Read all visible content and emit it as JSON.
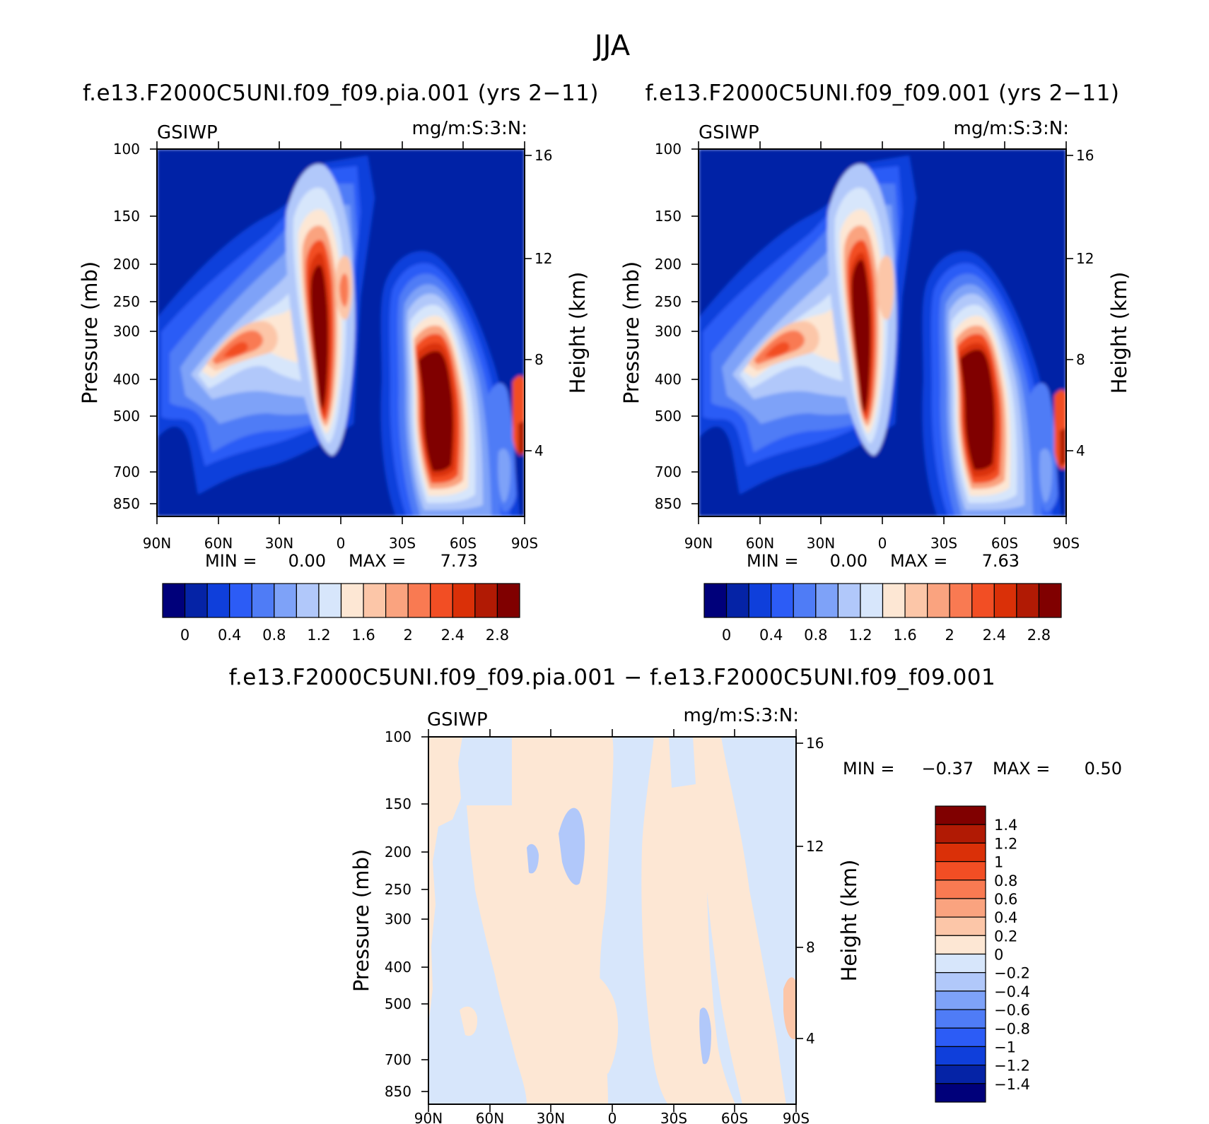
{
  "figure_title": "JJA",
  "chart_data": [
    {
      "type": "heatmap",
      "title": "f.e13.F2000C5UNI.f09_f09.pia.001 (yrs 2−11)",
      "variable": "GSIWP",
      "units": "mg/m:S:3:N:",
      "xlabel": "",
      "ylabel": "Pressure (mb)",
      "ylabel_right": "Height (km)",
      "x_ticks": [
        "90N",
        "60N",
        "30N",
        "0",
        "30S",
        "60S",
        "90S"
      ],
      "y_ticks": [
        "100",
        "150",
        "200",
        "250",
        "300",
        "400",
        "500",
        "700",
        "850"
      ],
      "y2_ticks": [
        "16",
        "12",
        "8",
        "4"
      ],
      "min_label": "MIN =",
      "min_value": "0.00",
      "max_label": "MAX =",
      "max_value": "7.73",
      "colorbar": {
        "orientation": "horizontal",
        "labels": [
          "0",
          "0.4",
          "0.8",
          "1.2",
          "1.6",
          "2",
          "2.4",
          "2.8"
        ],
        "colors": [
          "#00007a",
          "#0523a6",
          "#0f3fdb",
          "#2c5cf6",
          "#4f7cf6",
          "#7ea2f8",
          "#b1c8fa",
          "#d7e6fb",
          "#fde7d4",
          "#fcc6a8",
          "#faa37f",
          "#f97a52",
          "#f24e24",
          "#da3008",
          "#b11a04",
          "#800000"
        ]
      }
    },
    {
      "type": "heatmap",
      "title": "f.e13.F2000C5UNI.f09_f09.001 (yrs 2−11)",
      "variable": "GSIWP",
      "units": "mg/m:S:3:N:",
      "xlabel": "",
      "ylabel": "Pressure (mb)",
      "ylabel_right": "Height (km)",
      "x_ticks": [
        "90N",
        "60N",
        "30N",
        "0",
        "30S",
        "60S",
        "90S"
      ],
      "y_ticks": [
        "100",
        "150",
        "200",
        "250",
        "300",
        "400",
        "500",
        "700",
        "850"
      ],
      "y2_ticks": [
        "16",
        "12",
        "8",
        "4"
      ],
      "min_label": "MIN =",
      "min_value": "0.00",
      "max_label": "MAX =",
      "max_value": "7.63",
      "colorbar": {
        "orientation": "horizontal",
        "labels": [
          "0",
          "0.4",
          "0.8",
          "1.2",
          "1.6",
          "2",
          "2.4",
          "2.8"
        ],
        "colors": [
          "#00007a",
          "#0523a6",
          "#0f3fdb",
          "#2c5cf6",
          "#4f7cf6",
          "#7ea2f8",
          "#b1c8fa",
          "#d7e6fb",
          "#fde7d4",
          "#fcc6a8",
          "#faa37f",
          "#f97a52",
          "#f24e24",
          "#da3008",
          "#b11a04",
          "#800000"
        ]
      }
    },
    {
      "type": "heatmap",
      "title": "f.e13.F2000C5UNI.f09_f09.pia.001 − f.e13.F2000C5UNI.f09_f09.001",
      "variable": "GSIWP",
      "units": "mg/m:S:3:N:",
      "xlabel": "",
      "ylabel": "Pressure (mb)",
      "ylabel_right": "Height (km)",
      "x_ticks": [
        "90N",
        "60N",
        "30N",
        "0",
        "30S",
        "60S",
        "90S"
      ],
      "y_ticks": [
        "100",
        "150",
        "200",
        "250",
        "300",
        "400",
        "500",
        "700",
        "850"
      ],
      "y2_ticks": [
        "16",
        "12",
        "8",
        "4"
      ],
      "min_label": "MIN =",
      "min_value": "−0.37",
      "max_label": "MAX =",
      "max_value": "0.50",
      "colorbar": {
        "orientation": "vertical",
        "labels": [
          "1.4",
          "1.2",
          "1",
          "0.8",
          "0.6",
          "0.4",
          "0.2",
          "0",
          "−0.2",
          "−0.4",
          "−0.6",
          "−0.8",
          "−1",
          "−1.2",
          "−1.4"
        ],
        "colors": [
          "#800000",
          "#b11a04",
          "#da3008",
          "#f24e24",
          "#f97a52",
          "#faa37f",
          "#fcc6a8",
          "#fde7d4",
          "#d7e6fb",
          "#b1c8fa",
          "#7ea2f8",
          "#4f7cf6",
          "#2c5cf6",
          "#0f3fdb",
          "#0523a6",
          "#00007a"
        ]
      }
    }
  ]
}
